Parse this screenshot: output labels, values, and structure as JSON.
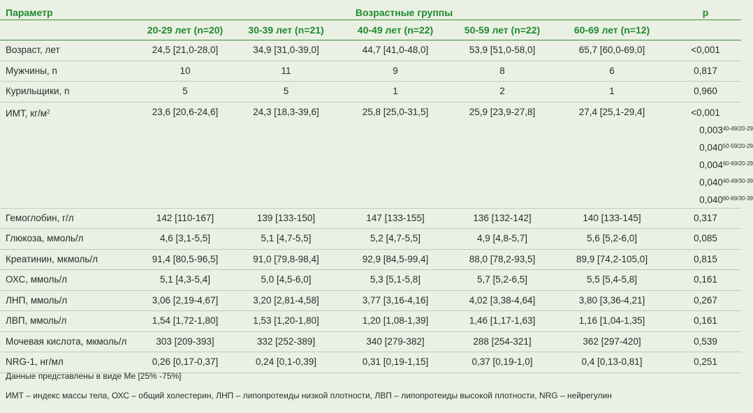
{
  "header": {
    "param": "Параметр",
    "groups_title": "Возрастные группы",
    "p": "p",
    "groups": [
      "20-29 лет (n=20)",
      "30-39 лет (n=21)",
      "40-49 лет (n=22)",
      "50-59 лет (n=22)",
      "60-69 лет (n=12)"
    ]
  },
  "rows": [
    {
      "name": "Возраст, лет",
      "values": [
        "24,5 [21,0-28,0]",
        "34,9 [31,0-39,0]",
        "44,7 [41,0-48,0]",
        "53,9 [51,0-58,0]",
        "65,7 [60,0-69,0]"
      ],
      "p": "<0,001"
    },
    {
      "name": "Мужчины, n",
      "values": [
        "10",
        "11",
        "9",
        "8",
        "6"
      ],
      "p": "0,817"
    },
    {
      "name": "Курильщики, n",
      "values": [
        "5",
        "5",
        "1",
        "2",
        "1"
      ],
      "p": "0,960"
    },
    {
      "name": "ИМТ, кг/м",
      "name_sup": "2",
      "values": [
        "23,6 [20,6-24,6]",
        "24,3 [18,3-39,6]",
        "25,8 [25,0-31,5]",
        "25,9 [23,9-27,8]",
        "27,4 [25,1-29,4]"
      ],
      "p": "<0,001",
      "p_extra": [
        {
          "v": "0,003",
          "sup": "40-49/20-29"
        },
        {
          "v": "0,040",
          "sup": "50-59/20-29"
        },
        {
          "v": "0,004",
          "sup": "60-69/20-29"
        },
        {
          "v": "0,040",
          "sup": "40-49/30-39"
        },
        {
          "v": "0,040",
          "sup": "60-69/30-39"
        }
      ]
    },
    {
      "name": "Гемоглобин, г/л",
      "values": [
        "142 [110-167]",
        "139 [133-150]",
        "147 [133-155]",
        "136 [132-142]",
        "140 [133-145]"
      ],
      "p": "0,317"
    },
    {
      "name": "Глюкоза, ммоль/л",
      "values": [
        "4,6 [3,1-5,5]",
        "5,1 [4,7-5,5]",
        "5,2 [4,7-5,5]",
        "4,9 [4,8-5,7]",
        "5,6 [5,2-6,0]"
      ],
      "p": "0,085"
    },
    {
      "name": "Креатинин, мкмоль/л",
      "values": [
        "91,4 [80,5-96,5]",
        "91,0 [79,8-98,4]",
        "92,9 [84,5-99,4]",
        "88,0 [78,2-93,5]",
        "89,9 [74,2-105,0]"
      ],
      "p": "0,815"
    },
    {
      "name": "ОХС, ммоль/л",
      "values": [
        "5,1 [4,3-5,4]",
        "5,0 [4,5-6,0]",
        "5,3 [5,1-5,8]",
        "5,7 [5,2-6,5]",
        "5,5 [5,4-5,8]"
      ],
      "p": "0,161"
    },
    {
      "name": "ЛНП, ммоль/л",
      "values": [
        "3,06 [2,19-4,67]",
        "3,20 [2,81-4,58]",
        "3,77 [3,16-4,16]",
        "4,02 [3,38-4,64]",
        "3,80 [3,36-4,21]"
      ],
      "p": "0,267"
    },
    {
      "name": "ЛВП, ммоль/л",
      "values": [
        "1,54 [1,72-1,80]",
        "1,53 [1,20-1,80]",
        "1,20 [1,08-1,39]",
        "1,46 [1,17-1,63]",
        "1,16 [1,04-1,35]"
      ],
      "p": "0,161"
    },
    {
      "name": "Мочевая кислота, мкмоль/л",
      "values": [
        "303 [209-393]",
        "332 [252-389]",
        "340 [279-382]",
        "288 [254-321]",
        "362 [297-420]"
      ],
      "p": "0,539"
    },
    {
      "name": "NRG-1, нг/мл",
      "values": [
        "0,26 [0,17-0,37]",
        "0,24 [0,1-0,39]",
        "0,31 [0,19-1,15]",
        "0,37 [0,19-1,0]",
        "0,4 [0,13-0,81]"
      ],
      "p": "0,251"
    }
  ],
  "footnotes": [
    "Данные представлены в виде Me [25% -75%]",
    "ИМТ – индекс массы тела, ОХС – общий холестерин, ЛНП – липопротеиды низкой плотности, ЛВП – липопротеиды высокой плотности, NRG – нейрегулин"
  ],
  "colors": {
    "background": "#eaf1e4",
    "header_text": "#1f8a2f",
    "rule": "#3a8a3a"
  }
}
